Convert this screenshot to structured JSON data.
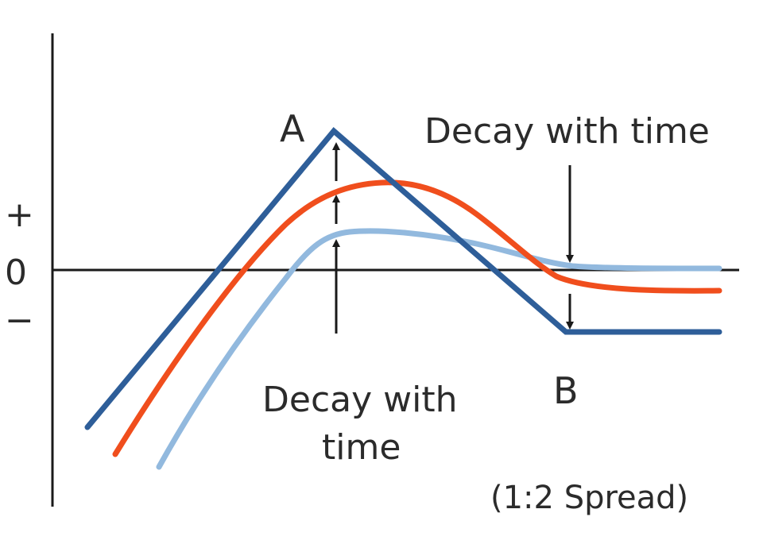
{
  "labels": {
    "y_plus": "+",
    "y_zero": "0",
    "y_minus": "−",
    "point_a": "A",
    "point_b": "B",
    "note_top": "Decay with time",
    "note_bottom_line1": "Decay with",
    "note_bottom_line2": "time",
    "caption": "(1:2 Spread)"
  },
  "colors": {
    "axis": "#1a1a1a",
    "series_dark_blue": "#2e5e99",
    "series_orange": "#f04e1d",
    "series_light_blue": "#92b9de",
    "arrow": "#1a1a1a",
    "text": "#2b2b2b"
  }
}
